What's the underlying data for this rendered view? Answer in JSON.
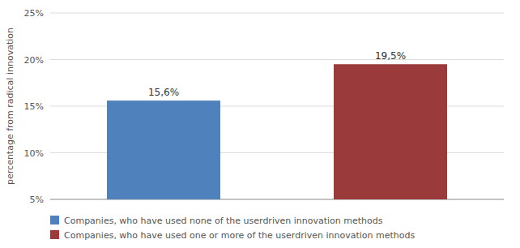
{
  "chart_data": {
    "type": "bar",
    "ylabel": "percentage from radical innovation",
    "categories": [
      null
    ],
    "series": [
      {
        "name": "Companies, who have used none of the userdriven innovation methods",
        "color": "#4f81bd",
        "values": [
          15.6
        ],
        "value_labels": [
          "15,6%"
        ]
      },
      {
        "name": "Companies, who have used one or more of the userdriven innovation methods",
        "color": "#9b3a3a",
        "values": [
          19.5
        ],
        "value_labels": [
          "19,5%"
        ]
      }
    ],
    "ylim": [
      5,
      25
    ],
    "yticks": [
      {
        "value": 5,
        "label": "5%"
      },
      {
        "value": 10,
        "label": "10%"
      },
      {
        "value": 15,
        "label": "15%"
      },
      {
        "value": 20,
        "label": "20%"
      },
      {
        "value": 25,
        "label": "25%"
      }
    ],
    "grid": true,
    "legend": "bottom",
    "data_labels": true,
    "tick_labels": "y"
  }
}
